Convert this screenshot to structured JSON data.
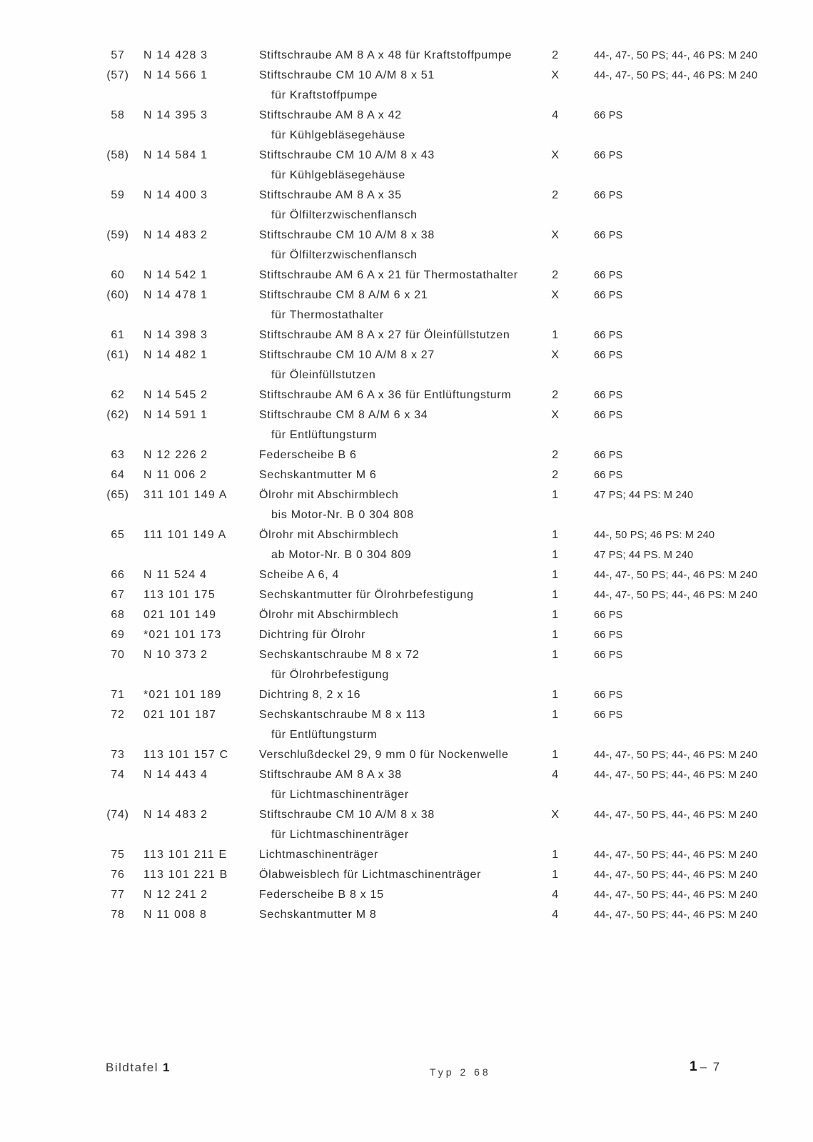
{
  "page": {
    "background_color": "#fefefe",
    "text_color": "#2b2b2b"
  },
  "table": {
    "columns": [
      "position",
      "part_number",
      "description",
      "quantity",
      "models"
    ],
    "rows": [
      {
        "pos": "57",
        "part": "N 14 428 3",
        "desc": "Stiftschraube AM 8 A x 48 für Kraftstoffpumpe",
        "qty": "2",
        "models": "44-, 47-, 50 PS; 44-, 46 PS: M 240"
      },
      {
        "pos": "(57)",
        "part": "N 14 566 1",
        "desc": "Stiftschraube CM 10 A/M 8 x 51",
        "qty": "X",
        "models": "44-, 47-, 50 PS; 44-, 46 PS: M 240"
      },
      {
        "pos": "",
        "part": "",
        "desc": "für Kraftstoffpumpe",
        "qty": "",
        "models": "",
        "indent": true
      },
      {
        "pos": "58",
        "part": "N 14 395 3",
        "desc": "Stiftschraube AM 8 A x 42",
        "qty": "4",
        "models": "66 PS"
      },
      {
        "pos": "",
        "part": "",
        "desc": "für Kühlgebläsegehäuse",
        "qty": "",
        "models": "",
        "indent": true
      },
      {
        "pos": "(58)",
        "part": "N 14 584 1",
        "desc": "Stiftschraube CM 10 A/M 8 x 43",
        "qty": "X",
        "models": "66 PS"
      },
      {
        "pos": "",
        "part": "",
        "desc": "für Kühlgebläsegehäuse",
        "qty": "",
        "models": "",
        "indent": true
      },
      {
        "pos": "59",
        "part": "N 14 400 3",
        "desc": "Stiftschraube AM 8 A x 35",
        "qty": "2",
        "models": "66 PS"
      },
      {
        "pos": "",
        "part": "",
        "desc": "für Ölfilterzwischenflansch",
        "qty": "",
        "models": "",
        "indent": true
      },
      {
        "pos": "(59)",
        "part": "N 14 483 2",
        "desc": "Stiftschraube CM 10 A/M 8 x 38",
        "qty": "X",
        "models": "66 PS"
      },
      {
        "pos": "",
        "part": "",
        "desc": "für Ölfilterzwischenflansch",
        "qty": "",
        "models": "",
        "indent": true
      },
      {
        "pos": "60",
        "part": "N 14 542 1",
        "desc": "Stiftschraube AM 6 A x 21 für Thermostathalter",
        "qty": "2",
        "models": "66 PS"
      },
      {
        "pos": "(60)",
        "part": "N 14 478 1",
        "desc": "Stiftschraube CM 8 A/M 6 x 21",
        "qty": "X",
        "models": "66 PS"
      },
      {
        "pos": "",
        "part": "",
        "desc": "für Thermostathalter",
        "qty": "",
        "models": "",
        "indent": true
      },
      {
        "pos": "61",
        "part": "N 14 398 3",
        "desc": "Stiftschraube AM 8 A x 27 für Öleinfüllstutzen",
        "qty": "1",
        "models": "66 PS"
      },
      {
        "pos": "(61)",
        "part": "N 14 482 1",
        "desc": "Stiftschraube CM 10 A/M 8 x 27",
        "qty": "X",
        "models": "66 PS"
      },
      {
        "pos": "",
        "part": "",
        "desc": "für Öleinfüllstutzen",
        "qty": "",
        "models": "",
        "indent": true
      },
      {
        "pos": "62",
        "part": "N 14 545 2",
        "desc": "Stiftschraube AM 6 A x 36 für Entlüftungsturm",
        "qty": "2",
        "models": "66 PS"
      },
      {
        "pos": "(62)",
        "part": "N 14 591 1",
        "desc": "Stiftschraube CM 8 A/M 6 x 34",
        "qty": "X",
        "models": "66 PS"
      },
      {
        "pos": "",
        "part": "",
        "desc": "für Entlüftungsturm",
        "qty": "",
        "models": "",
        "indent": true
      },
      {
        "pos": "63",
        "part": "N 12 226 2",
        "desc": "Federscheibe B 6",
        "qty": "2",
        "models": "66 PS"
      },
      {
        "pos": "64",
        "part": "N 11 006 2",
        "desc": "Sechskantmutter M 6",
        "qty": "2",
        "models": "66 PS"
      },
      {
        "pos": "(65)",
        "part": "311 101 149 A",
        "desc": "Ölrohr mit Abschirmblech",
        "qty": "1",
        "models": "47 PS; 44 PS: M 240"
      },
      {
        "pos": "",
        "part": "",
        "desc": "bis Motor-Nr.  B 0 304 808",
        "qty": "",
        "models": "",
        "indent": true
      },
      {
        "pos": "65",
        "part": "111 101 149 A",
        "desc": "Ölrohr mit Abschirmblech",
        "qty": "1",
        "models": "44-, 50 PS;  46 PS:  M 240"
      },
      {
        "pos": "",
        "part": "",
        "desc": "ab Motor-Nr.  B 0 304 809",
        "qty": "1",
        "models": "47 PS;  44 PS.  M 240",
        "indent": true
      },
      {
        "pos": "66",
        "part": "N 11 524 4",
        "desc": "Scheibe A 6, 4",
        "qty": "1",
        "models": "44-, 47-, 50 PS; 44-, 46 PS: M 240"
      },
      {
        "pos": "67",
        "part": "113 101 175",
        "desc": "Sechskantmutter für Ölrohrbefestigung",
        "qty": "1",
        "models": "44-, 47-, 50 PS; 44-, 46 PS: M 240"
      },
      {
        "pos": "68",
        "part": "021 101 149",
        "desc": "Ölrohr mit Abschirmblech",
        "qty": "1",
        "models": "66 PS"
      },
      {
        "pos": "69",
        "part": "*021 101 173",
        "desc": "Dichtring für Ölrohr",
        "qty": "1",
        "models": "66 PS"
      },
      {
        "pos": "70",
        "part": "N 10 373 2",
        "desc": "Sechskantschraube M 8 x 72",
        "qty": "1",
        "models": "66 PS"
      },
      {
        "pos": "",
        "part": "",
        "desc": "für Ölrohrbefestigung",
        "qty": "",
        "models": "",
        "indent": true
      },
      {
        "pos": "71",
        "part": "*021 101 189",
        "desc": "Dichtring 8, 2 x 16",
        "qty": "1",
        "models": "66 PS"
      },
      {
        "pos": "72",
        "part": "021 101 187",
        "desc": "Sechskantschraube M 8 x 113",
        "qty": "1",
        "models": "66 PS"
      },
      {
        "pos": "",
        "part": "",
        "desc": "für Entlüftungsturm",
        "qty": "",
        "models": "",
        "indent": true
      },
      {
        "pos": "73",
        "part": "113 101 157 C",
        "desc": "Verschlußdeckel 29, 9 mm 0 für Nockenwelle",
        "qty": "1",
        "models": "44-, 47-, 50 PS; 44-, 46 PS: M 240"
      },
      {
        "pos": "74",
        "part": "N 14 443 4",
        "desc": "Stiftschraube AM 8 A x 38",
        "qty": "4",
        "models": "44-, 47-, 50 PS; 44-, 46 PS: M 240"
      },
      {
        "pos": "",
        "part": "",
        "desc": "für Lichtmaschinenträger",
        "qty": "",
        "models": "",
        "indent": true
      },
      {
        "pos": "(74)",
        "part": "N 14 483 2",
        "desc": "Stiftschraube CM 10 A/M 8 x 38",
        "qty": "X",
        "models": "44-, 47-, 50 PS, 44-, 46 PS: M 240"
      },
      {
        "pos": "",
        "part": "",
        "desc": "für Lichtmaschinenträger",
        "qty": "",
        "models": "",
        "indent": true
      },
      {
        "pos": "75",
        "part": "113 101 211 E",
        "desc": "Lichtmaschinenträger",
        "qty": "1",
        "models": "44-, 47-, 50 PS; 44-, 46 PS: M 240"
      },
      {
        "pos": "76",
        "part": "113 101 221 B",
        "desc": "Ölabweisblech für Lichtmaschinenträger",
        "qty": "1",
        "models": "44-, 47-, 50 PS; 44-, 46 PS: M 240"
      },
      {
        "pos": "77",
        "part": "N 12 241 2",
        "desc": "Federscheibe B 8 x 15",
        "qty": "4",
        "models": "44-, 47-, 50 PS; 44-, 46 PS: M 240"
      },
      {
        "pos": "78",
        "part": "N 11 008 8",
        "desc": "Sechskantmutter M 8",
        "qty": "4",
        "models": "44-, 47-, 50 PS; 44-, 46 PS: M 240"
      }
    ]
  },
  "footer": {
    "left_label": "Bildtafel",
    "left_number": "1",
    "center_text": "Typ 2 68",
    "right_number": "1",
    "right_rest": "– 7"
  }
}
